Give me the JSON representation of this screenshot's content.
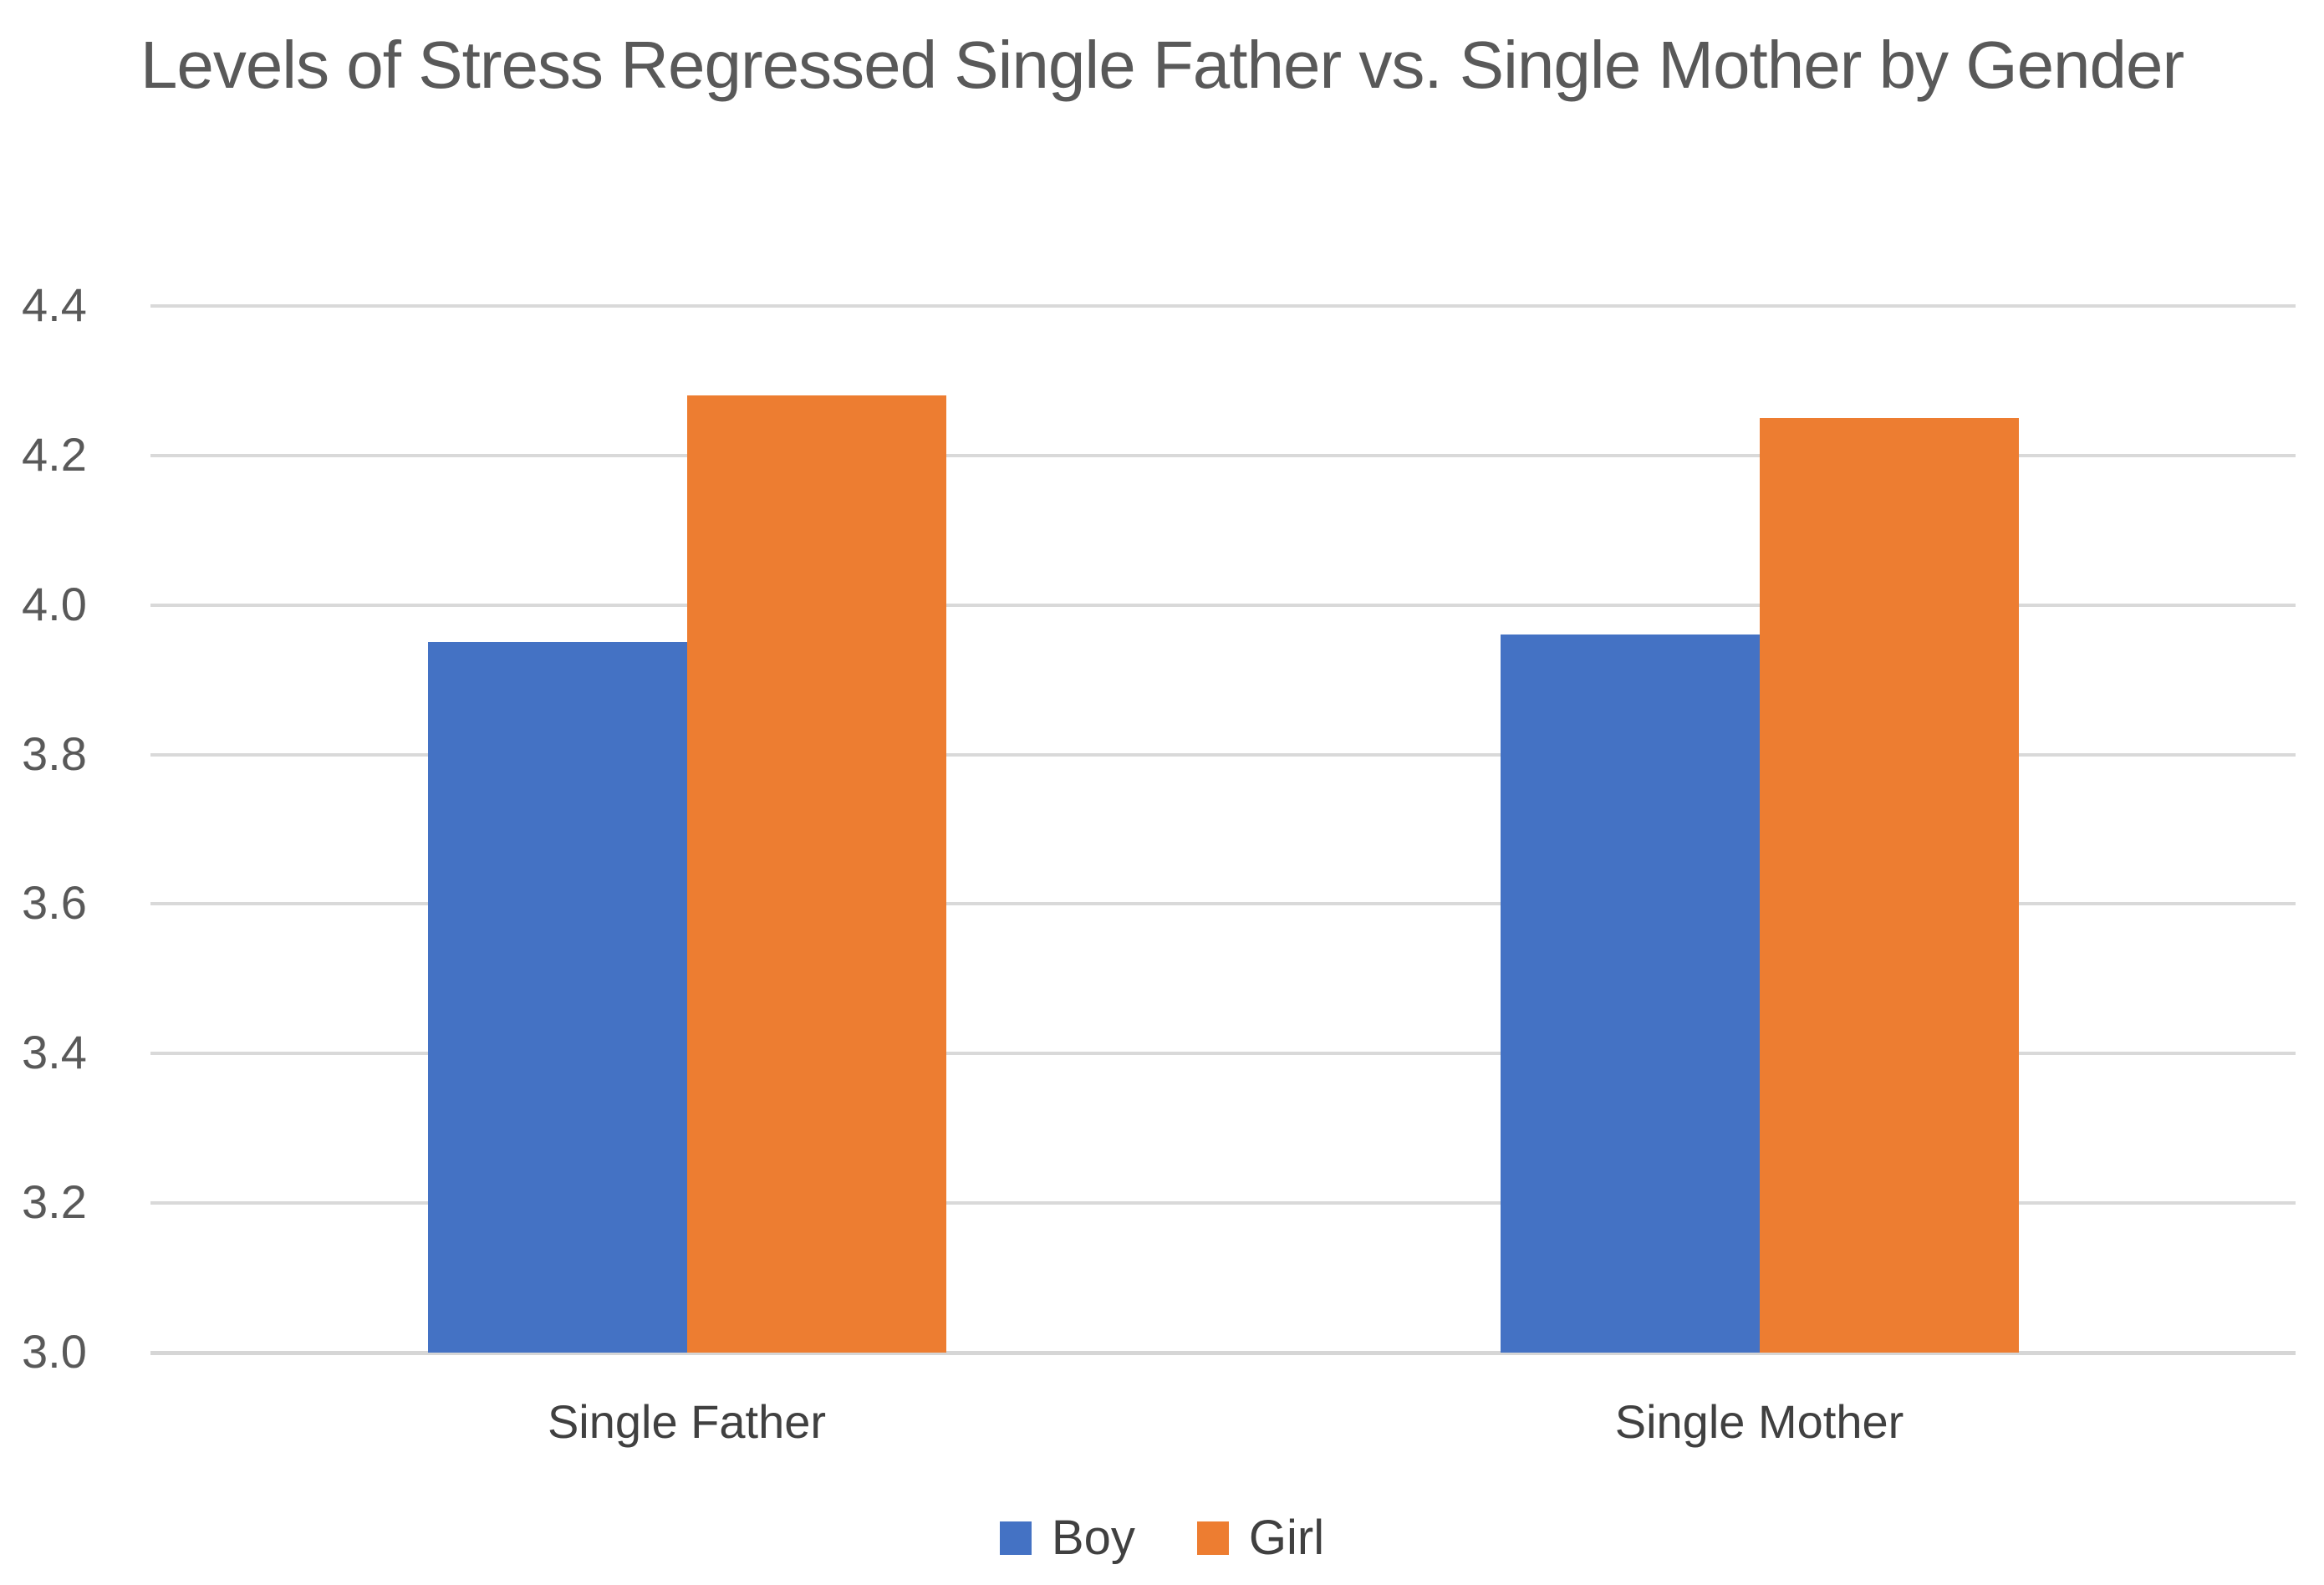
{
  "chart_data": {
    "type": "bar",
    "title": "Levels of Stress Regressed Single Father vs. Single Mother by Gender",
    "categories": [
      "Single Father",
      "Single Mother"
    ],
    "series": [
      {
        "name": "Boy",
        "color": "#4472C4",
        "values": [
          3.95,
          3.96
        ]
      },
      {
        "name": "Girl",
        "color": "#ED7D31",
        "values": [
          4.28,
          4.25
        ]
      }
    ],
    "xlabel": "",
    "ylabel": "",
    "ylim": [
      3.0,
      4.4
    ],
    "ytick_step": 0.2,
    "ytick_labels": [
      "3.0",
      "3.2",
      "3.4",
      "3.6",
      "3.8",
      "4.0",
      "4.2",
      "4.4"
    ],
    "grid": true,
    "legend_position": "bottom",
    "colors": {
      "gridline": "#D9D9D9",
      "axis_text": "#595959",
      "title_text": "#595959",
      "category_text": "#404040",
      "legend_text": "#404040",
      "background": "#FFFFFF"
    }
  }
}
